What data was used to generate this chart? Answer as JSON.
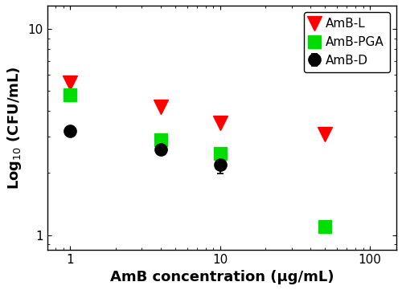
{
  "title": "",
  "xlabel": "AmB concentration (μg/mL)",
  "ylabel": "Log$_{10}$ (CFU/mL)",
  "xlim": [
    0.7,
    150
  ],
  "ylim": [
    0.85,
    13
  ],
  "series": [
    {
      "label": "AmB-D",
      "color": "black",
      "marker": "o",
      "markersize": 11,
      "x": [
        1,
        4,
        10
      ],
      "y": [
        3.2,
        2.6,
        2.2
      ],
      "yerr": [
        0.0,
        0.0,
        0.22
      ]
    },
    {
      "label": "AmB-L",
      "color": "red",
      "marker": "v",
      "markersize": 13,
      "x": [
        1,
        4,
        10,
        50
      ],
      "y": [
        5.5,
        4.2,
        3.5,
        3.1
      ],
      "yerr": [
        0.0,
        0.0,
        0.0,
        0.0
      ]
    },
    {
      "label": "AmB-PGA",
      "color": "#00dd00",
      "marker": "s",
      "markersize": 11,
      "x": [
        1,
        4,
        10,
        50
      ],
      "y": [
        4.8,
        2.9,
        2.5,
        1.1
      ],
      "yerr": [
        0.0,
        0.0,
        0.0,
        0.0
      ]
    }
  ],
  "legend_loc": "upper right",
  "background_color": "white",
  "font_size_axis_label": 13,
  "font_size_tick": 11,
  "font_size_legend": 11
}
